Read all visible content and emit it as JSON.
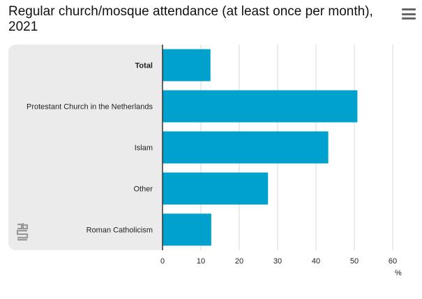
{
  "header": {
    "title": "Regular church/mosque attendance (at least once per month), 2021",
    "menu_icon": "hamburger-menu-icon"
  },
  "logo": {
    "icon": "cbs-logo-icon"
  },
  "colors": {
    "bar": "#00a1cd",
    "panel": "#ebebeb",
    "grid": "#d7d7d7",
    "axis": "#333333"
  },
  "chart_data": {
    "type": "bar",
    "orientation": "horizontal",
    "categories": [
      "Total",
      "Protestant Church in the Netherlands",
      "Islam",
      "Other",
      "Roman Catholicism"
    ],
    "bold_categories": [
      "Total"
    ],
    "values": [
      12.5,
      50.8,
      43.2,
      27.5,
      12.7
    ],
    "xlim": [
      0,
      60
    ],
    "xticks": [
      0,
      10,
      20,
      30,
      40,
      50,
      60
    ],
    "xlabel": "%",
    "grid": true
  }
}
